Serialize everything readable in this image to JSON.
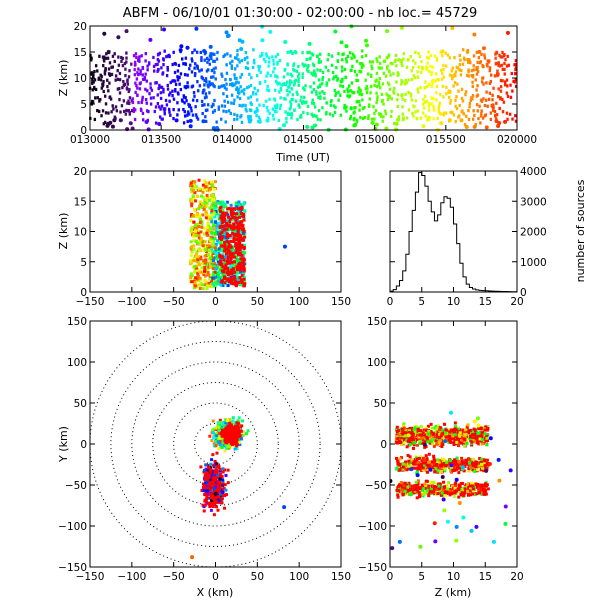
{
  "chart_data": [
    {
      "type": "scatter",
      "panel": "time-height",
      "title": "ABFM - 06/10/01 01:30:00 - 02:00:00 - nb loc.=  45729",
      "xlabel": "Time (UT)",
      "ylabel": "Z (km)",
      "x_ticks": [
        "013000",
        "013500",
        "014000",
        "014500",
        "015000",
        "015500",
        "020000"
      ],
      "x_range_seconds": [
        0,
        1800
      ],
      "ylim": [
        0,
        20
      ],
      "y_ticks": [
        "0",
        "5",
        "10",
        "15",
        "20"
      ],
      "color_encoding": "time (rainbow: black → purple → blue → cyan → green → yellow → orange → red)",
      "dense_band_z_km": [
        2,
        15
      ]
    },
    {
      "type": "scatter",
      "panel": "x-z",
      "xlabel": "",
      "ylabel": "Z (km)",
      "xlim": [
        -150,
        150
      ],
      "x_ticks": [
        "−150",
        "−100",
        "−50",
        "0",
        "50",
        "100",
        "150"
      ],
      "ylim": [
        0,
        20
      ],
      "y_ticks": [
        "0",
        "5",
        "10",
        "15",
        "20"
      ],
      "dense_x_km": [
        -35,
        35
      ]
    },
    {
      "type": "line",
      "panel": "height-histogram",
      "xlabel": "",
      "ylabel": "number of sources",
      "xlim": [
        0,
        20
      ],
      "x_ticks": [
        "0",
        "5",
        "10",
        "15",
        "20"
      ],
      "ylim": [
        0,
        4000
      ],
      "y_ticks": [
        "0",
        "1000",
        "2000",
        "3000",
        "4000"
      ],
      "x": [
        0.5,
        1.0,
        1.5,
        2.0,
        2.5,
        3.0,
        3.5,
        4.0,
        4.5,
        5.0,
        5.5,
        6.0,
        6.5,
        7.0,
        7.5,
        8.0,
        8.5,
        9.0,
        9.5,
        10.0,
        10.5,
        11.0,
        11.5,
        12.0,
        12.5,
        13.0,
        13.5,
        14.0,
        14.5,
        15.0,
        15.5,
        16.0,
        16.5,
        17.0,
        17.5,
        18.0,
        18.5,
        19.0,
        19.5,
        20.0
      ],
      "values": [
        30,
        80,
        200,
        380,
        700,
        1250,
        2000,
        2700,
        3300,
        3950,
        3850,
        3500,
        3000,
        2650,
        2350,
        2550,
        2950,
        3150,
        3100,
        2800,
        2250,
        1600,
        950,
        500,
        260,
        150,
        100,
        70,
        55,
        45,
        40,
        35,
        30,
        25,
        20,
        18,
        15,
        12,
        10,
        8
      ]
    },
    {
      "type": "scatter",
      "panel": "plan-view",
      "xlabel": "X (km)",
      "ylabel": "Y (km)",
      "xlim": [
        -150,
        150
      ],
      "x_ticks": [
        "−150",
        "−100",
        "−50",
        "0",
        "50",
        "100",
        "150"
      ],
      "ylim": [
        -150,
        150
      ],
      "y_ticks": [
        "−150",
        "−100",
        "−50",
        "0",
        "50",
        "100",
        "150"
      ],
      "range_rings_km": [
        25,
        50,
        75,
        100,
        125,
        150
      ],
      "clusters": [
        {
          "center_x_km": 15,
          "center_y_km": 12
        },
        {
          "center_x_km": -2,
          "center_y_km": -50
        }
      ]
    },
    {
      "type": "scatter",
      "panel": "z-y",
      "xlabel": "Z (km)",
      "ylabel": "",
      "xlim": [
        0,
        20
      ],
      "x_ticks": [
        "0",
        "5",
        "10",
        "15",
        "20"
      ],
      "ylim": [
        -150,
        150
      ],
      "y_ticks": [
        "−150",
        "−100",
        "−50",
        "0",
        "50",
        "100",
        "150"
      ],
      "bands_y_km": [
        10,
        -25,
        -55
      ]
    }
  ]
}
